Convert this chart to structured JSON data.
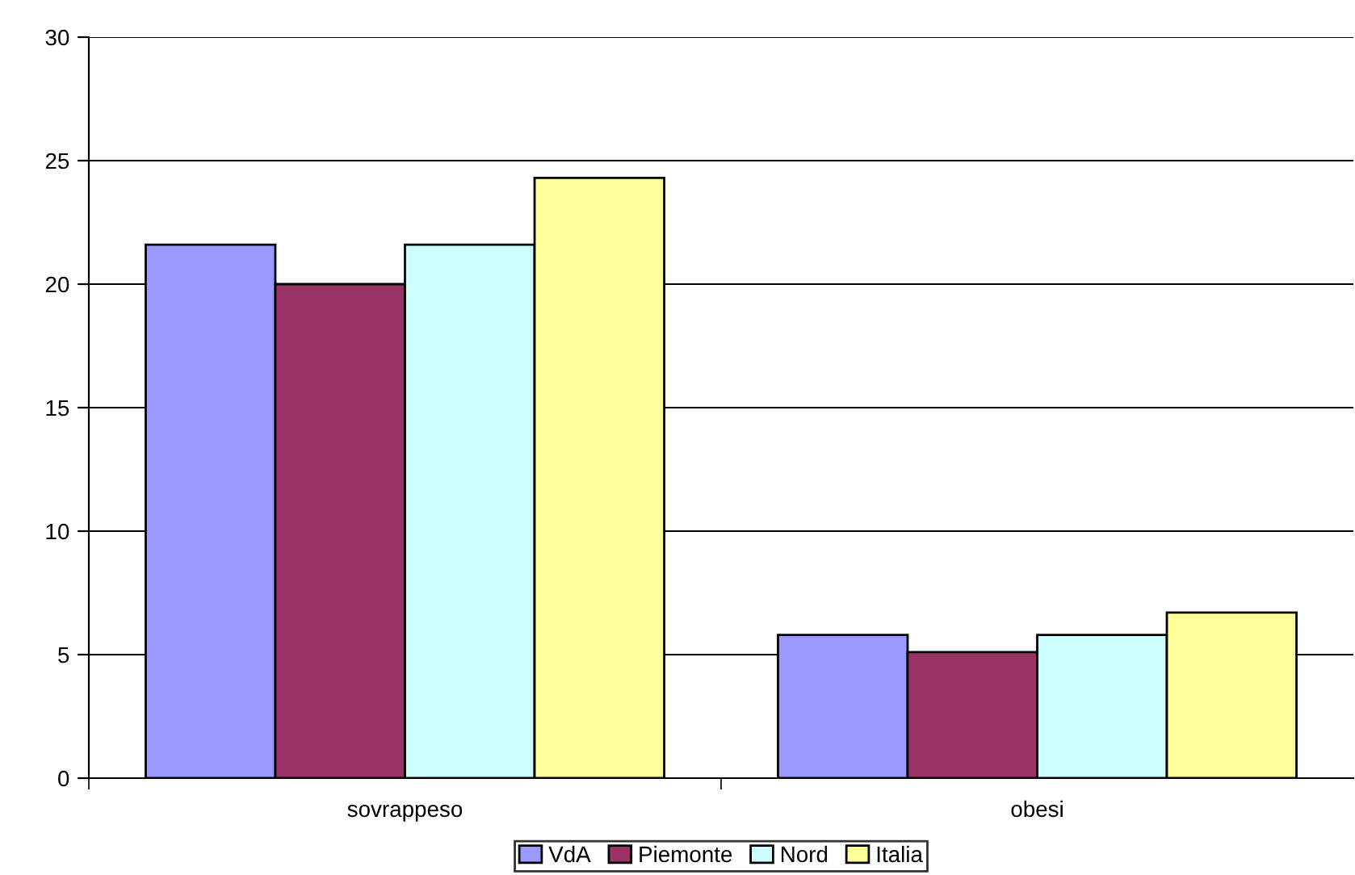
{
  "chart_data": {
    "type": "bar",
    "categories": [
      "sovrappeso",
      "obesi"
    ],
    "series": [
      {
        "name": "VdA",
        "color": "#9999ff",
        "values": [
          21.6,
          5.8
        ]
      },
      {
        "name": "Piemonte",
        "color": "#993366",
        "values": [
          20.0,
          5.1
        ]
      },
      {
        "name": "Nord",
        "color": "#ccffff",
        "values": [
          21.6,
          5.8
        ]
      },
      {
        "name": "Italia",
        "color": "#ffff99",
        "values": [
          24.3,
          6.7
        ]
      }
    ],
    "ylim": [
      0,
      30
    ],
    "yticks": [
      0,
      5,
      10,
      15,
      20,
      25,
      30
    ],
    "grid": "y",
    "legend": "bottom"
  }
}
